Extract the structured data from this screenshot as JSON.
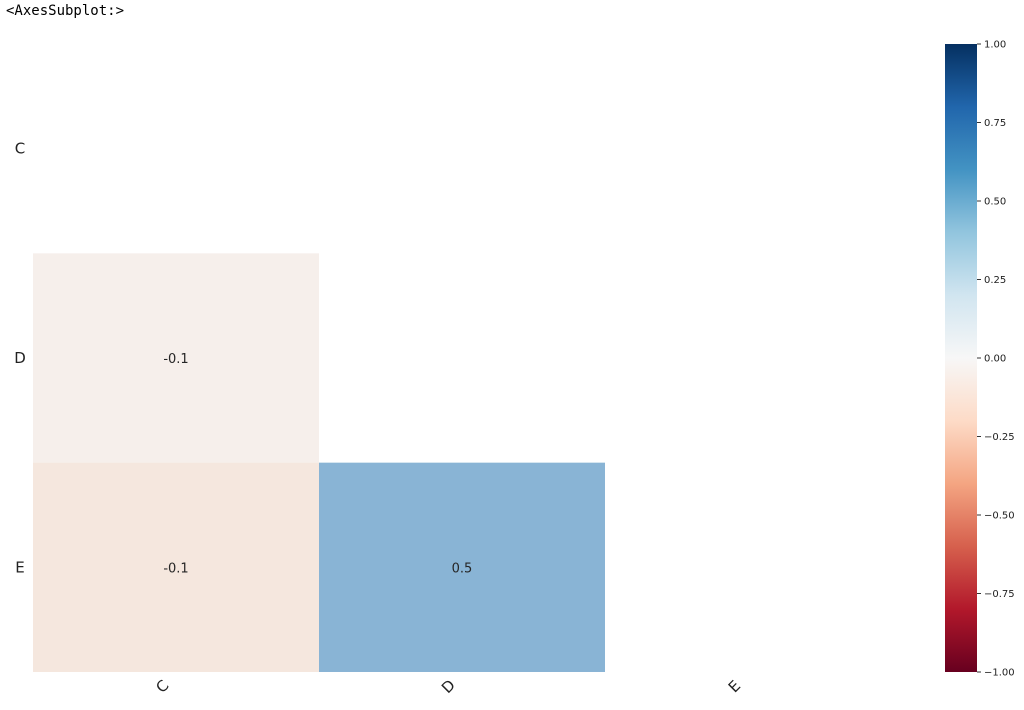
{
  "header": {
    "repr_text": "<AxesSubplot:>"
  },
  "chart_data": {
    "type": "heatmap",
    "rows": [
      "C",
      "D",
      "E"
    ],
    "columns": [
      "C",
      "D",
      "E"
    ],
    "mask": "upper-triangle-including-diagonal",
    "cells": [
      {
        "row": "D",
        "col": "C",
        "value": -0.05,
        "label": "-0.1"
      },
      {
        "row": "E",
        "col": "C",
        "value": -0.1,
        "label": "-0.1"
      },
      {
        "row": "E",
        "col": "D",
        "value": 0.5,
        "label": "0.5"
      }
    ],
    "colormap": "RdBu",
    "vmin": -1.0,
    "vmax": 1.0,
    "colorbar_ticks": [
      "1.00",
      "0.75",
      "0.50",
      "0.25",
      "0.00",
      "−0.25",
      "−0.50",
      "−0.75",
      "−1.00"
    ],
    "colorbar_tick_values": [
      1.0,
      0.75,
      0.5,
      0.25,
      0.0,
      -0.25,
      -0.5,
      -0.75,
      -1.0
    ],
    "colorbar_stops": [
      "#053061",
      "#2166ac",
      "#4393c3",
      "#92c5de",
      "#d1e5f0",
      "#f7f7f7",
      "#fddbc7",
      "#f4a582",
      "#d6604d",
      "#b2182b",
      "#67001f"
    ],
    "cell_colors": {
      "D-C": "#f6efeb",
      "E-C": "#f5e7de",
      "E-D": "#89b4d5"
    }
  }
}
